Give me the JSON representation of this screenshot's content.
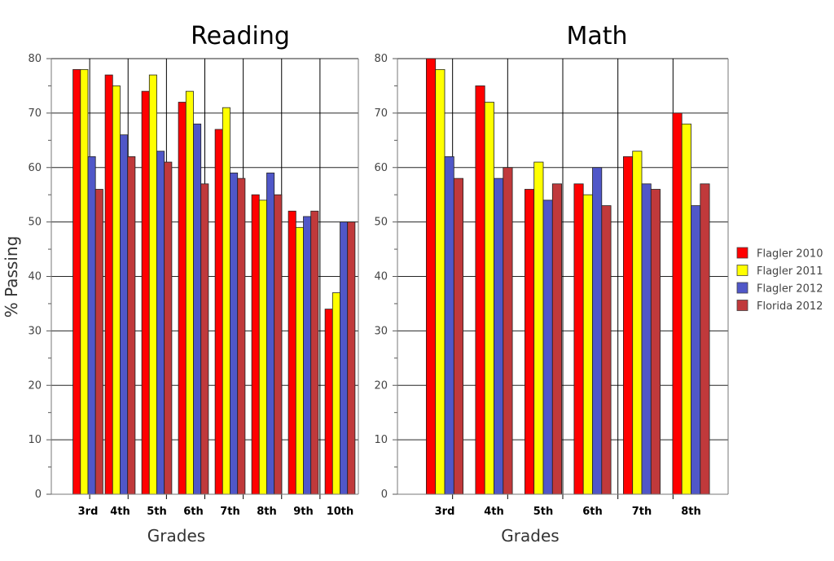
{
  "chart_data": [
    {
      "type": "bar",
      "title": "Reading",
      "xlabel": "Grades",
      "ylabel": "% Passing",
      "ylim": [
        0,
        80
      ],
      "yticks": [
        0,
        10,
        20,
        30,
        40,
        50,
        60,
        70,
        80
      ],
      "grid": true,
      "categories": [
        "3rd",
        "4th",
        "5th",
        "6th",
        "7th",
        "8th",
        "9th",
        "10th"
      ],
      "series": [
        {
          "name": "Flagler 2010",
          "color": "#ff0000",
          "values": [
            78,
            77,
            74,
            72,
            67,
            55,
            52,
            34
          ]
        },
        {
          "name": "Flagler 2011",
          "color": "#ffff00",
          "values": [
            78,
            75,
            77,
            74,
            71,
            54,
            49,
            37
          ]
        },
        {
          "name": "Flagler 2012",
          "color": "#5057c8",
          "values": [
            62,
            66,
            63,
            68,
            59,
            59,
            51,
            50
          ]
        },
        {
          "name": "Florida 2012",
          "color": "#c0393b",
          "values": [
            56,
            62,
            61,
            57,
            58,
            55,
            52,
            50
          ]
        }
      ]
    },
    {
      "type": "bar",
      "title": "Math",
      "xlabel": "Grades",
      "ylabel": "",
      "ylim": [
        0,
        80
      ],
      "yticks": [
        0,
        10,
        20,
        30,
        40,
        50,
        60,
        70,
        80
      ],
      "grid": true,
      "categories": [
        "3rd",
        "4th",
        "5th",
        "6th",
        "7th",
        "8th"
      ],
      "series": [
        {
          "name": "Flagler 2010",
          "color": "#ff0000",
          "values": [
            80,
            75,
            56,
            57,
            62,
            70
          ]
        },
        {
          "name": "Flagler 2011",
          "color": "#ffff00",
          "values": [
            78,
            72,
            61,
            55,
            63,
            68
          ]
        },
        {
          "name": "Flagler 2012",
          "color": "#5057c8",
          "values": [
            62,
            58,
            54,
            60,
            57,
            53
          ]
        },
        {
          "name": "Florida 2012",
          "color": "#c0393b",
          "values": [
            58,
            60,
            57,
            53,
            56,
            57
          ]
        }
      ]
    }
  ],
  "legend": {
    "placement": "right",
    "items": [
      {
        "label": "Flagler 2010",
        "color": "#ff0000"
      },
      {
        "label": "Flagler 2011",
        "color": "#ffff00"
      },
      {
        "label": "Flagler 2012",
        "color": "#5057c8"
      },
      {
        "label": "Florida 2012",
        "color": "#c0393b"
      }
    ]
  }
}
